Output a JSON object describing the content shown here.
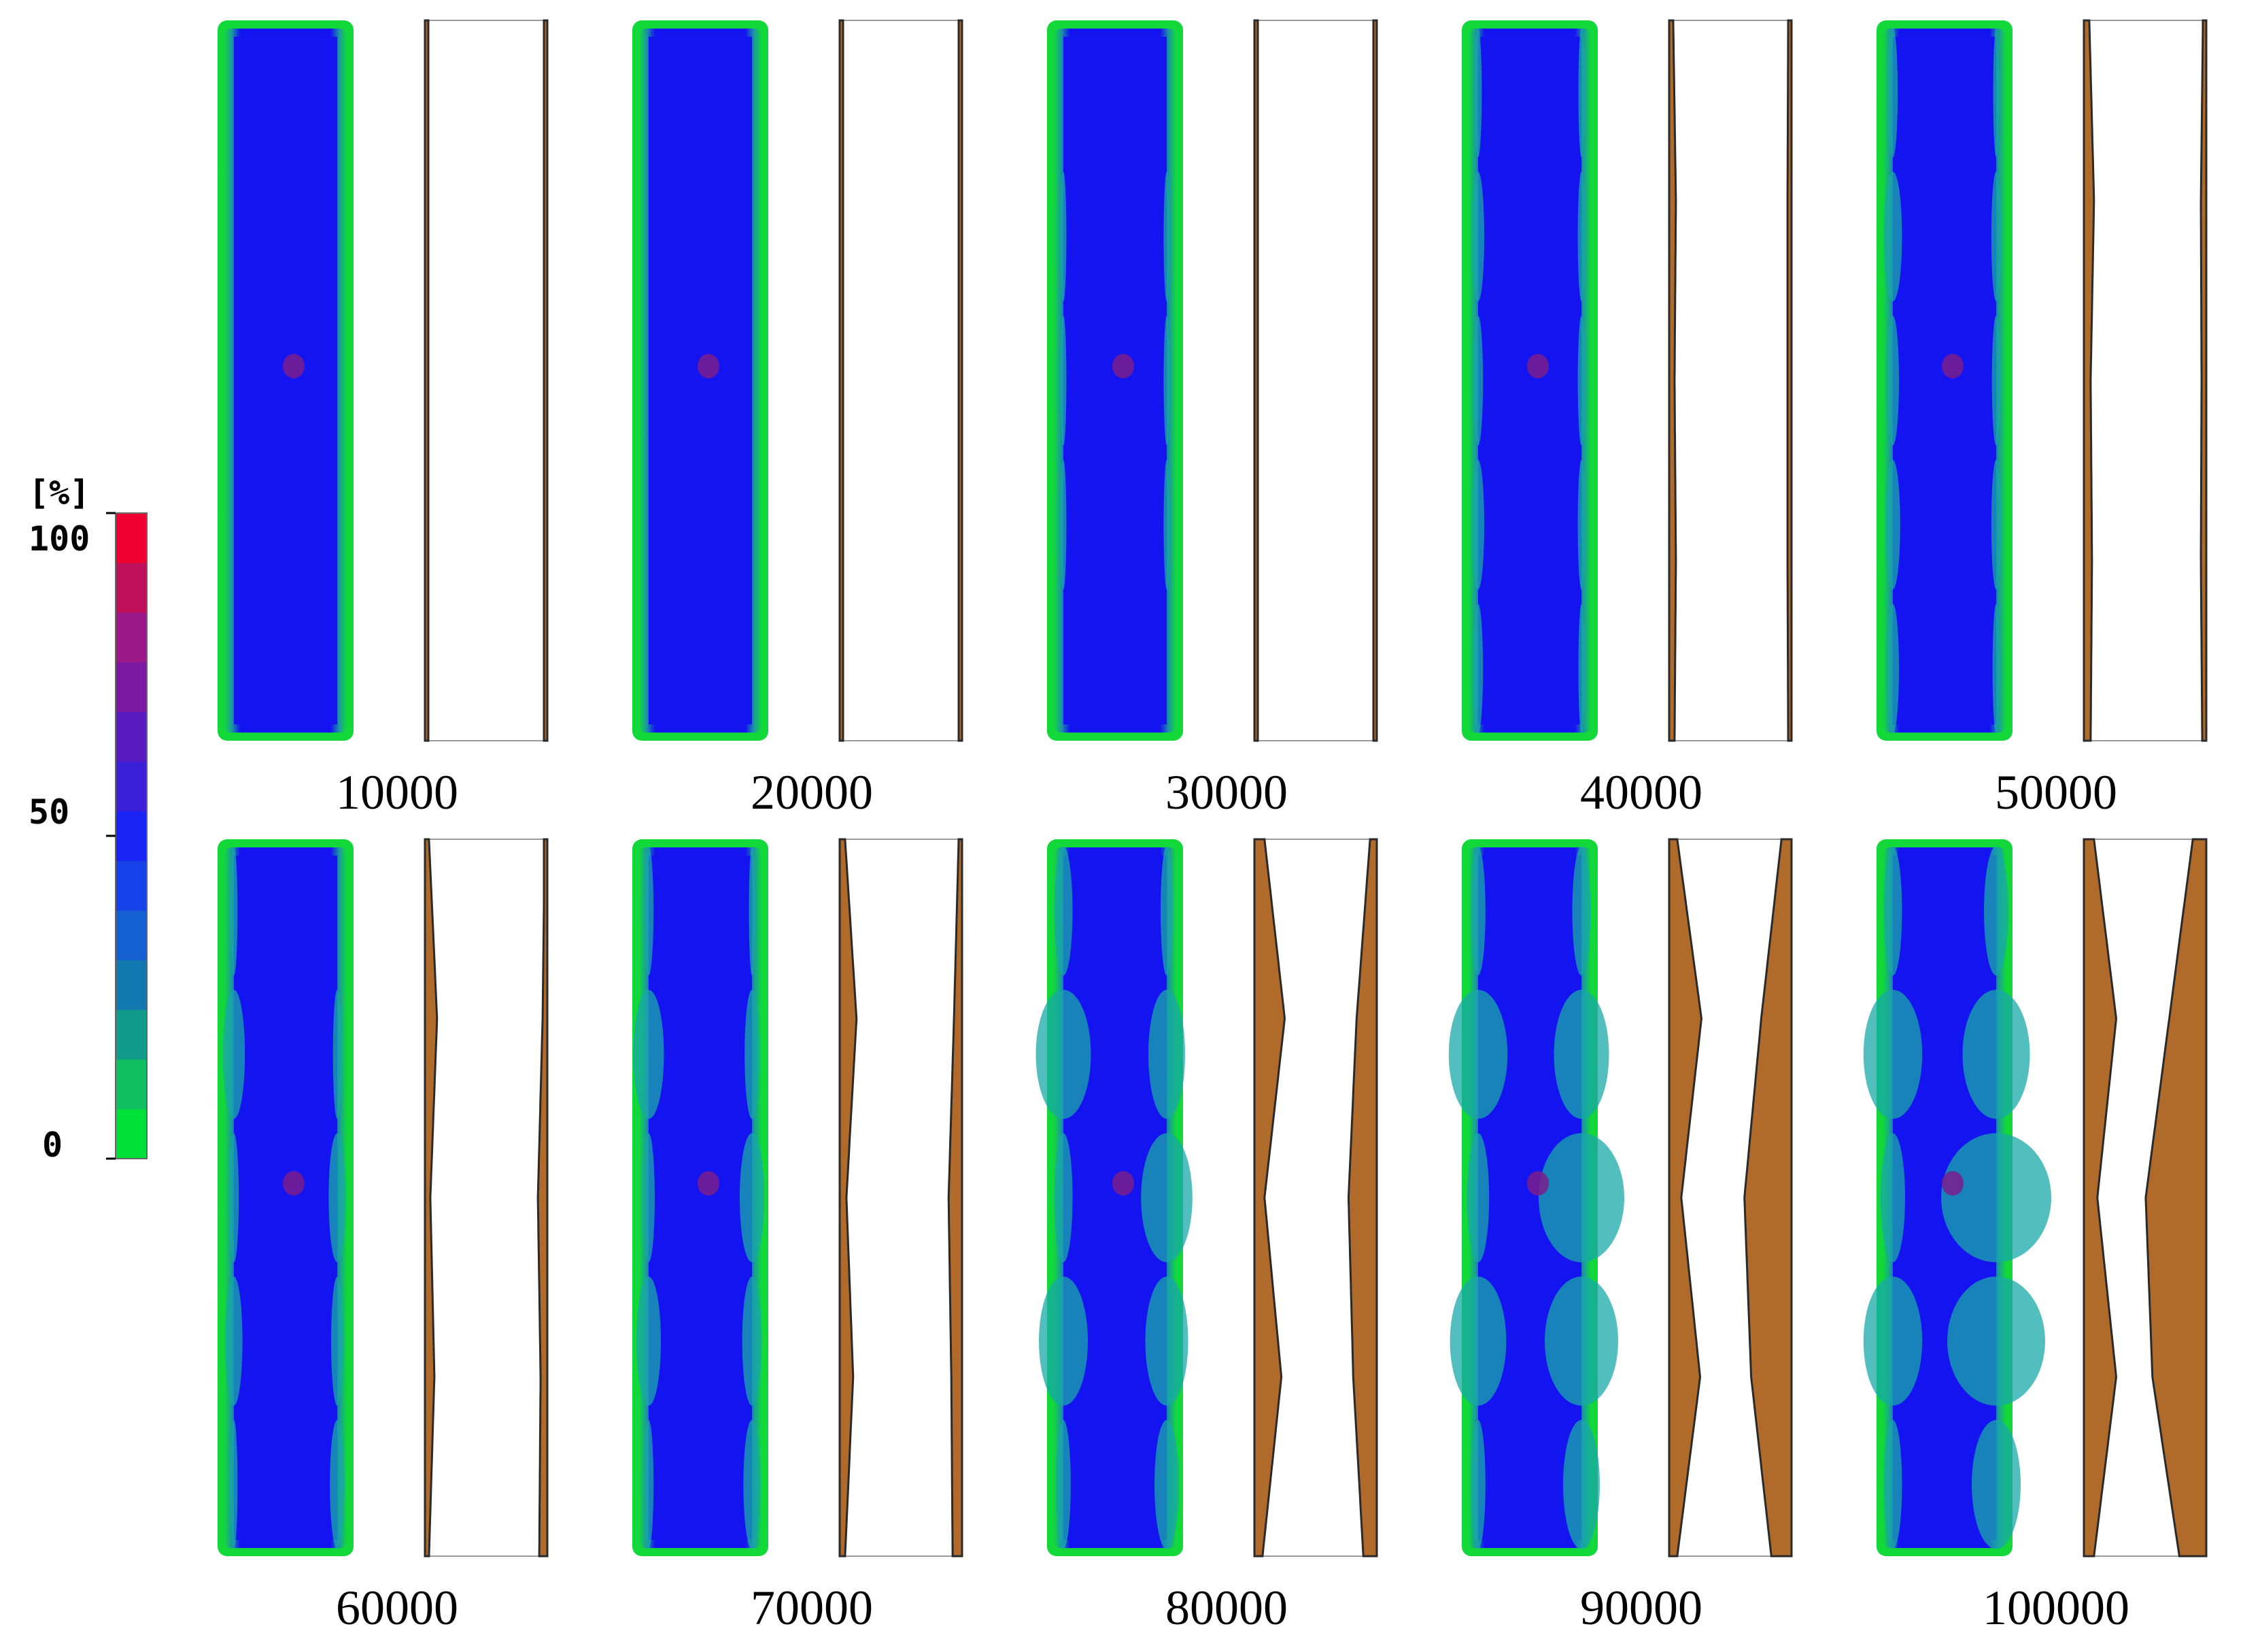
{
  "colorbar": {
    "unit": "[%]",
    "ticks": [
      {
        "label": "100",
        "value": 100
      },
      {
        "label": "50",
        "value": 50
      },
      {
        "label": "0",
        "value": 0
      }
    ],
    "colors": [
      "#00e03a",
      "#10c060",
      "#129a8a",
      "#1478b0",
      "#1560d0",
      "#1640e8",
      "#1a24f4",
      "#3a20d8",
      "#5a1cc0",
      "#7a18a0",
      "#9a1888",
      "#c0105a",
      "#f00030"
    ]
  },
  "panels": [
    {
      "step": "10000",
      "wear_left": [
        0.02,
        0.02,
        0.02,
        0.02,
        0.02
      ],
      "wear_right": [
        0.03,
        0.03,
        0.03,
        0.03,
        0.03
      ]
    },
    {
      "step": "20000",
      "wear_left": [
        0.03,
        0.03,
        0.03,
        0.03,
        0.03
      ],
      "wear_right": [
        0.03,
        0.03,
        0.03,
        0.03,
        0.03
      ]
    },
    {
      "step": "30000",
      "wear_left": [
        0.04,
        0.05,
        0.05,
        0.05,
        0.04
      ],
      "wear_right": [
        0.04,
        0.05,
        0.05,
        0.05,
        0.04
      ]
    },
    {
      "step": "40000",
      "wear_left": [
        0.06,
        0.1,
        0.08,
        0.1,
        0.08
      ],
      "wear_right": [
        0.05,
        0.06,
        0.06,
        0.06,
        0.05
      ]
    },
    {
      "step": "50000",
      "wear_left": [
        0.08,
        0.15,
        0.1,
        0.12,
        0.1
      ],
      "wear_right": [
        0.05,
        0.08,
        0.07,
        0.08,
        0.06
      ]
    },
    {
      "step": "60000",
      "wear_left": [
        0.06,
        0.18,
        0.08,
        0.14,
        0.06
      ],
      "wear_right": [
        0.04,
        0.07,
        0.14,
        0.1,
        0.12
      ]
    },
    {
      "step": "70000",
      "wear_left": [
        0.08,
        0.25,
        0.1,
        0.2,
        0.08
      ],
      "wear_right": [
        0.05,
        0.12,
        0.2,
        0.16,
        0.14
      ]
    },
    {
      "step": "80000",
      "wear_left": [
        0.15,
        0.45,
        0.15,
        0.4,
        0.12
      ],
      "wear_right": [
        0.1,
        0.3,
        0.42,
        0.35,
        0.2
      ]
    },
    {
      "step": "90000",
      "wear_left": [
        0.12,
        0.48,
        0.18,
        0.46,
        0.12
      ],
      "wear_right": [
        0.15,
        0.45,
        0.7,
        0.6,
        0.3
      ]
    },
    {
      "step": "100000",
      "wear_left": [
        0.15,
        0.48,
        0.2,
        0.48,
        0.15
      ],
      "wear_right": [
        0.2,
        0.55,
        0.9,
        0.8,
        0.4
      ]
    }
  ],
  "colors": {
    "pressure_bulk": "#1414f0",
    "pressure_edge": "#12d83a",
    "pressure_hotspot": "#7a1d8c",
    "wear_fill": "#b06a2a",
    "wear_edge": "#2a2a2a",
    "outline": "#9a9a9a"
  }
}
